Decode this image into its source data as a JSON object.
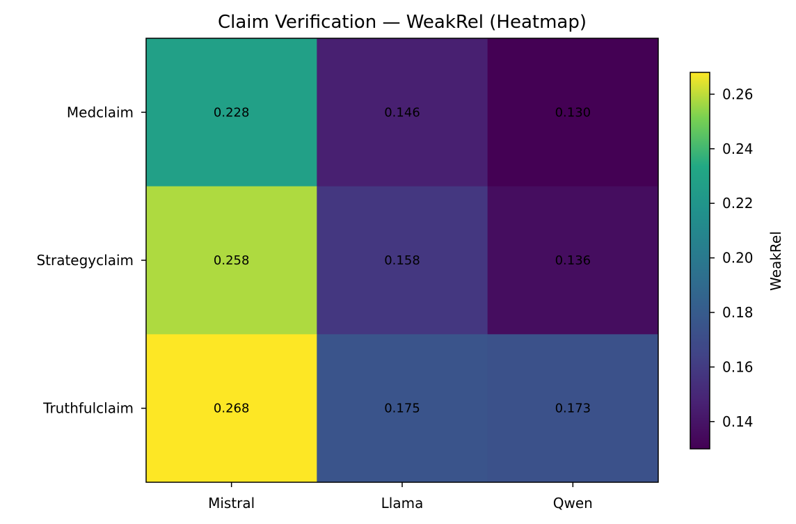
{
  "chart_data": {
    "type": "heatmap",
    "title": "Claim Verification — WeakRel (Heatmap)",
    "xlabel": "",
    "ylabel": "",
    "columns": [
      "Mistral",
      "Llama",
      "Qwen"
    ],
    "rows": [
      "Medclaim",
      "Strategyclaim",
      "Truthfulclaim"
    ],
    "values": [
      [
        0.228,
        0.146,
        0.13
      ],
      [
        0.258,
        0.158,
        0.136
      ],
      [
        0.268,
        0.175,
        0.173
      ]
    ],
    "value_labels": [
      [
        "0.228",
        "0.146",
        "0.130"
      ],
      [
        "0.258",
        "0.158",
        "0.136"
      ],
      [
        "0.268",
        "0.175",
        "0.173"
      ]
    ],
    "colormap": "viridis",
    "colorbar": {
      "label": "WeakRel",
      "range": [
        0.13,
        0.268
      ],
      "ticks": [
        0.14,
        0.16,
        0.18,
        0.2,
        0.22,
        0.24,
        0.26
      ],
      "tick_labels": [
        "0.14",
        "0.16",
        "0.18",
        "0.20",
        "0.22",
        "0.24",
        "0.26"
      ],
      "placement": "right"
    },
    "grid": false
  }
}
